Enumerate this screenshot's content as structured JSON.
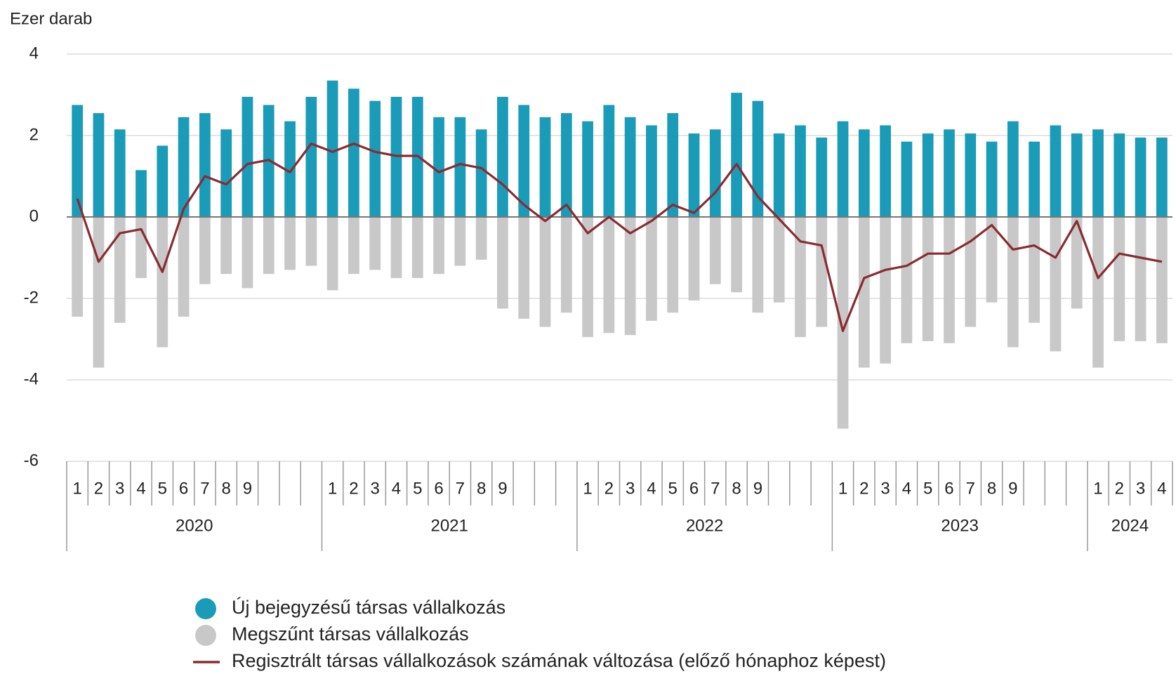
{
  "chart_data": {
    "type": "bar",
    "y_label": "Ezer darab",
    "categories": [
      "1",
      "2",
      "3",
      "4",
      "5",
      "6",
      "7",
      "8",
      "9",
      null,
      null,
      null,
      "1",
      "2",
      "3",
      "4",
      "5",
      "6",
      "7",
      "8",
      "9",
      null,
      null,
      null,
      "1",
      "2",
      "3",
      "4",
      "5",
      "6",
      "7",
      "8",
      "9",
      null,
      null,
      null,
      "1",
      "2",
      "3",
      "4",
      "5",
      "6",
      "7",
      "8",
      "9",
      null,
      null,
      null,
      "1",
      "2",
      "3",
      "4"
    ],
    "groups": [
      "2020",
      "2021",
      "2022",
      "2023",
      "2024"
    ],
    "series": [
      {
        "name": "Új bejegyzésű társas vállalkozás",
        "type": "bar",
        "color": "#1a9bb8",
        "values": [
          2.75,
          2.55,
          2.15,
          1.15,
          1.75,
          2.45,
          2.55,
          2.15,
          2.95,
          2.75,
          2.35,
          2.95,
          3.35,
          3.15,
          2.85,
          2.95,
          2.95,
          2.45,
          2.45,
          2.15,
          2.95,
          2.75,
          2.45,
          2.55,
          2.35,
          2.75,
          2.45,
          2.25,
          2.55,
          2.05,
          2.15,
          3.05,
          2.85,
          2.05,
          2.25,
          1.95,
          2.35,
          2.15,
          2.25,
          1.85,
          2.05,
          2.15,
          2.05,
          1.85,
          2.35,
          1.85,
          2.25,
          2.05,
          2.15,
          2.05,
          1.95,
          1.95
        ]
      },
      {
        "name": "Megszűnt társas vállalkozás",
        "type": "bar",
        "color": "#c8c8c8",
        "values": [
          -2.45,
          -3.7,
          -2.6,
          -1.5,
          -3.2,
          -2.45,
          -1.65,
          -1.4,
          -1.75,
          -1.4,
          -1.3,
          -1.2,
          -1.8,
          -1.4,
          -1.3,
          -1.5,
          -1.5,
          -1.4,
          -1.2,
          -1.05,
          -2.25,
          -2.5,
          -2.7,
          -2.35,
          -2.95,
          -2.85,
          -2.9,
          -2.55,
          -2.35,
          -2.05,
          -1.65,
          -1.85,
          -2.35,
          -2.1,
          -2.95,
          -2.7,
          -5.2,
          -3.7,
          -3.6,
          -3.1,
          -3.05,
          -3.1,
          -2.7,
          -2.1,
          -3.2,
          -2.6,
          -3.3,
          -2.25,
          -3.7,
          -3.05,
          -3.05,
          -3.1
        ]
      },
      {
        "name": "Regisztrált társas vállalkozások számának változása (előző hónaphoz képest)",
        "type": "line",
        "color": "#8b2a2f",
        "values": [
          0.45,
          -1.1,
          -0.4,
          -0.3,
          -1.35,
          0.2,
          1.0,
          0.8,
          1.3,
          1.4,
          1.1,
          1.8,
          1.6,
          1.8,
          1.6,
          1.5,
          1.5,
          1.1,
          1.3,
          1.2,
          0.8,
          0.3,
          -0.1,
          0.3,
          -0.4,
          0.0,
          -0.4,
          -0.1,
          0.3,
          0.1,
          0.6,
          1.3,
          0.5,
          -0.05,
          -0.6,
          -0.7,
          -2.8,
          -1.5,
          -1.3,
          -1.2,
          -0.9,
          -0.9,
          -0.6,
          -0.2,
          -0.8,
          -0.7,
          -1.0,
          -0.1,
          -1.5,
          -0.9,
          -1.0,
          -1.1
        ]
      }
    ],
    "ylim": [
      -6,
      4
    ],
    "yticks": [
      -6,
      -4,
      -2,
      0,
      2,
      4
    ],
    "grid": true
  }
}
